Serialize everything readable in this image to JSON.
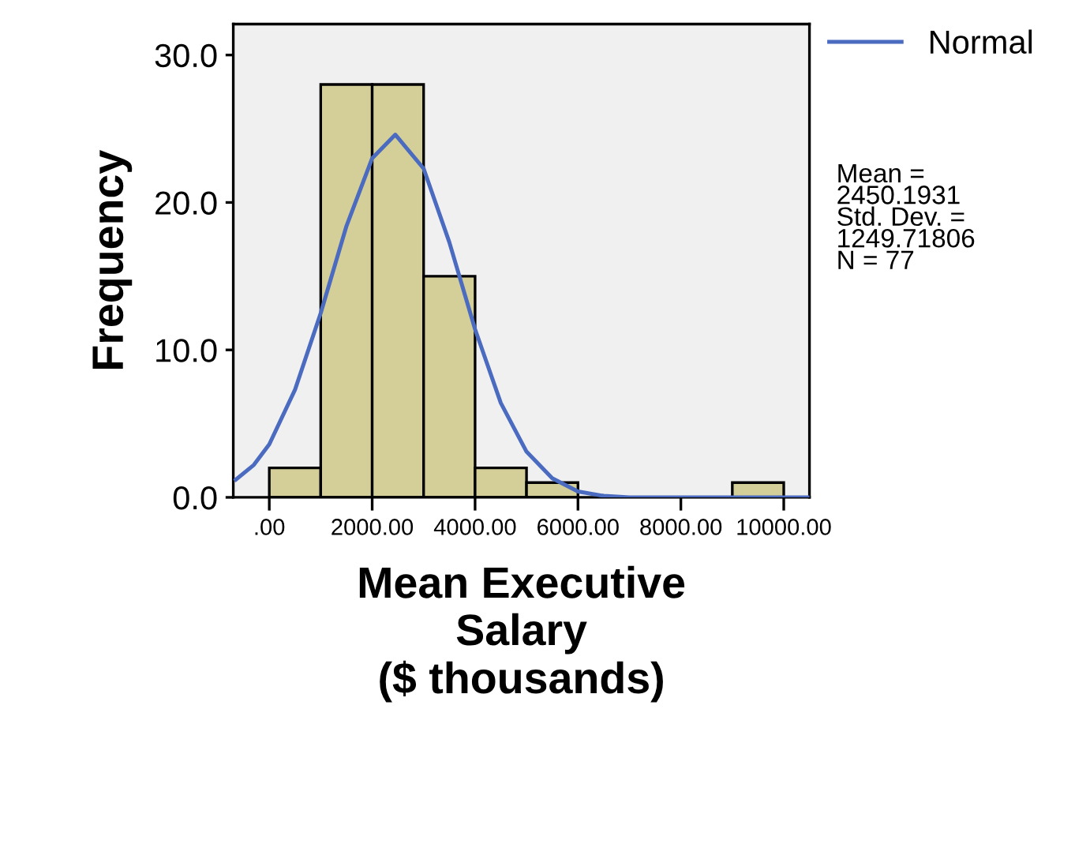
{
  "chart_data": {
    "type": "histogram",
    "xlabel": "Mean Executive\nSalary\n($ thousands)",
    "ylabel": "Frequency",
    "bins": [
      0,
      1000,
      2000,
      3000,
      4000,
      5000,
      6000,
      7000,
      8000,
      9000,
      10000
    ],
    "values": [
      2,
      28,
      28,
      15,
      2,
      1,
      0,
      0,
      0,
      1
    ],
    "color": "#d4cf98",
    "series": [
      {
        "name": "Normal",
        "type": "line",
        "color": "#4a6bbf",
        "x": [
          -650,
          -300,
          0,
          500,
          1000,
          1500,
          2000,
          2450,
          3000,
          3500,
          4000,
          4500,
          5000,
          5500,
          6000,
          6500,
          7000,
          8000,
          9000,
          10000,
          10500
        ],
        "values": [
          1.2,
          2.2,
          3.6,
          7.3,
          12.5,
          18.4,
          23.0,
          24.6,
          22.3,
          17.3,
          11.4,
          6.4,
          3.1,
          1.3,
          0.4,
          0.1,
          0.0,
          0.0,
          0.0,
          0.0,
          0.0
        ]
      }
    ],
    "xlim": [
      -700,
      10500
    ],
    "xticks": [
      {
        "value": 0,
        "label": ".00"
      },
      {
        "value": 2000,
        "label": "2000.00"
      },
      {
        "value": 4000,
        "label": "4000.00"
      },
      {
        "value": 6000,
        "label": "6000.00"
      },
      {
        "value": 8000,
        "label": "8000.00"
      },
      {
        "value": 10000,
        "label": "10000.00"
      }
    ],
    "ylim": [
      0,
      32.1
    ],
    "yticks": [
      {
        "value": 0,
        "label": "0.0"
      },
      {
        "value": 10,
        "label": "10.0"
      },
      {
        "value": 20,
        "label": "20.0"
      },
      {
        "value": 30,
        "label": "30.0"
      }
    ],
    "legend": "top right",
    "annotations": [
      "Mean =\n2450.1931\nStd. Dev. =\n1249.71806\nN = 77"
    ]
  }
}
